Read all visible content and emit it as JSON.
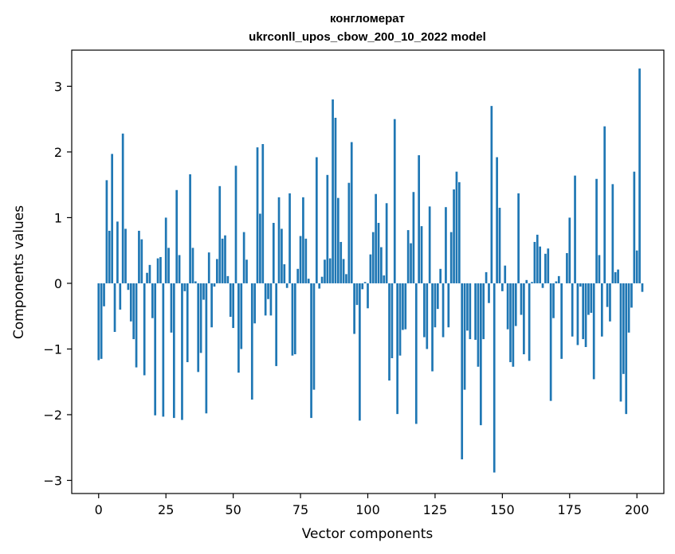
{
  "chart_data": {
    "type": "bar",
    "title_line1": "конгломерат",
    "title_line2": "ukrconll_upos_cbow_200_10_2022 model",
    "xlabel": "Vector components",
    "ylabel": "Components values",
    "xlim": [
      -10,
      210
    ],
    "ylim": [
      -3.2,
      3.55
    ],
    "xticks": [
      0,
      25,
      50,
      75,
      100,
      125,
      150,
      175,
      200
    ],
    "yticks": [
      -3,
      -2,
      -1,
      0,
      1,
      2,
      3
    ],
    "ytick_labels": [
      "−3",
      "−2",
      "−1",
      "0",
      "1",
      "2",
      "3"
    ],
    "bar_color": "#1f77b4",
    "grid": false,
    "values": [
      -1.17,
      -1.15,
      -0.35,
      1.57,
      0.8,
      1.97,
      -0.74,
      0.94,
      -0.4,
      2.28,
      0.83,
      -0.1,
      -0.58,
      -0.85,
      -1.28,
      0.8,
      0.67,
      -1.4,
      0.16,
      0.28,
      -0.53,
      -2.01,
      0.38,
      0.4,
      -2.03,
      1.0,
      0.54,
      -0.75,
      -2.05,
      1.42,
      0.43,
      -2.08,
      -0.12,
      -1.2,
      1.66,
      0.54,
      0.03,
      -1.35,
      -1.06,
      -0.25,
      -1.98,
      0.47,
      -0.67,
      -0.05,
      0.37,
      1.48,
      0.68,
      0.73,
      0.11,
      -0.51,
      -0.68,
      1.79,
      -1.36,
      -1.0,
      0.78,
      0.36,
      0.0,
      -1.77,
      -0.61,
      2.07,
      1.06,
      2.12,
      -0.49,
      -0.24,
      -0.49,
      0.92,
      -1.26,
      1.31,
      0.83,
      0.29,
      -0.07,
      1.37,
      -1.1,
      -1.08,
      0.22,
      0.72,
      1.31,
      0.68,
      0.07,
      -2.05,
      -1.62,
      1.92,
      -0.08,
      0.1,
      0.36,
      1.65,
      0.38,
      2.8,
      2.52,
      1.3,
      0.63,
      0.37,
      0.14,
      1.53,
      2.15,
      -0.77,
      -0.33,
      -2.09,
      -0.09,
      0.02,
      -0.38,
      0.44,
      0.78,
      1.36,
      0.92,
      0.55,
      0.12,
      1.22,
      -1.48,
      -1.14,
      2.5,
      -1.99,
      -1.1,
      -0.71,
      -0.7,
      0.81,
      0.61,
      1.39,
      -2.14,
      1.95,
      0.87,
      -0.82,
      -1.0,
      1.17,
      -1.34,
      -0.67,
      -0.39,
      0.22,
      -0.82,
      1.16,
      -0.67,
      0.78,
      1.43,
      1.7,
      1.54,
      -2.68,
      -1.62,
      -0.72,
      -0.85,
      0.0,
      -0.86,
      -1.27,
      -2.16,
      -0.85,
      0.17,
      -0.3,
      2.7,
      -2.88,
      1.92,
      1.15,
      -0.12,
      0.27,
      -0.7,
      -1.2,
      -1.27,
      -0.65,
      1.37,
      -0.48,
      -1.08,
      0.05,
      -1.18,
      0.02,
      0.63,
      0.74,
      0.56,
      -0.07,
      0.45,
      0.53,
      -1.79,
      -0.53,
      0.03,
      0.11,
      -1.15,
      0.0,
      0.46,
      1.0,
      -0.81,
      1.64,
      -0.94,
      -0.05,
      -0.85,
      -0.97,
      -0.48,
      -0.45,
      -1.46,
      1.59,
      0.43,
      -0.81,
      2.39,
      -0.36,
      -0.58,
      1.51,
      0.17,
      0.21,
      -1.8,
      -1.38,
      -1.99,
      -0.75,
      -0.37,
      1.7,
      0.5,
      3.27,
      -0.13
    ]
  }
}
